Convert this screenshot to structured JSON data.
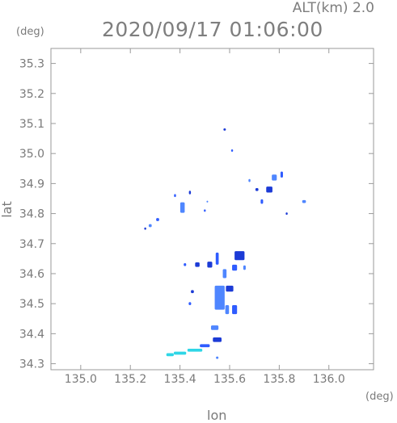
{
  "chart_data": {
    "type": "scatter",
    "title": "2020/09/17 01:06:00",
    "subtitle": "ALT(km) 2.0",
    "xlabel": "lon",
    "ylabel": "lat",
    "xunit": "(deg)",
    "yunit": "(deg)",
    "xlim": [
      134.88,
      136.18
    ],
    "ylim": [
      34.28,
      35.35
    ],
    "xticks": [
      "135.0",
      "135.2",
      "135.4",
      "135.6",
      "135.8",
      "136.0"
    ],
    "xtick_values": [
      135.0,
      135.2,
      135.4,
      135.6,
      135.8,
      136.0
    ],
    "yticks": [
      "34.3",
      "34.4",
      "34.5",
      "34.6",
      "34.7",
      "34.8",
      "34.9",
      "35.0",
      "35.1",
      "35.2",
      "35.3"
    ],
    "ytick_values": [
      34.3,
      34.4,
      34.5,
      34.6,
      34.7,
      34.8,
      34.9,
      35.0,
      35.1,
      35.2,
      35.3
    ],
    "grid": false,
    "colors": {
      "axis": "#9a9a9a",
      "echo_main": "#2f5cff",
      "echo_dark": "#1c3bd6",
      "echo_light": "#4f86ff",
      "echo_cyan": "#2fd6e6"
    },
    "cells": [
      {
        "x": 135.58,
        "y": 35.08,
        "w": 0.01,
        "h": 0.008
      },
      {
        "x": 135.61,
        "y": 35.01,
        "w": 0.008,
        "h": 0.008
      },
      {
        "x": 135.78,
        "y": 34.92,
        "w": 0.02,
        "h": 0.02
      },
      {
        "x": 135.76,
        "y": 34.88,
        "w": 0.025,
        "h": 0.02
      },
      {
        "x": 135.81,
        "y": 34.93,
        "w": 0.01,
        "h": 0.02
      },
      {
        "x": 135.68,
        "y": 34.91,
        "w": 0.008,
        "h": 0.01
      },
      {
        "x": 135.71,
        "y": 34.88,
        "w": 0.012,
        "h": 0.01
      },
      {
        "x": 135.73,
        "y": 34.84,
        "w": 0.01,
        "h": 0.015
      },
      {
        "x": 135.9,
        "y": 34.84,
        "w": 0.015,
        "h": 0.01
      },
      {
        "x": 135.83,
        "y": 34.8,
        "w": 0.008,
        "h": 0.008
      },
      {
        "x": 135.38,
        "y": 34.86,
        "w": 0.008,
        "h": 0.01
      },
      {
        "x": 135.41,
        "y": 34.82,
        "w": 0.018,
        "h": 0.035
      },
      {
        "x": 135.44,
        "y": 34.87,
        "w": 0.008,
        "h": 0.012
      },
      {
        "x": 135.31,
        "y": 34.78,
        "w": 0.012,
        "h": 0.01
      },
      {
        "x": 135.28,
        "y": 34.76,
        "w": 0.012,
        "h": 0.01
      },
      {
        "x": 135.26,
        "y": 34.75,
        "w": 0.008,
        "h": 0.008
      },
      {
        "x": 135.5,
        "y": 34.81,
        "w": 0.008,
        "h": 0.008
      },
      {
        "x": 135.51,
        "y": 34.84,
        "w": 0.006,
        "h": 0.006
      },
      {
        "x": 135.64,
        "y": 34.66,
        "w": 0.04,
        "h": 0.03
      },
      {
        "x": 135.62,
        "y": 34.62,
        "w": 0.02,
        "h": 0.02
      },
      {
        "x": 135.66,
        "y": 34.62,
        "w": 0.01,
        "h": 0.015
      },
      {
        "x": 135.52,
        "y": 34.63,
        "w": 0.02,
        "h": 0.02
      },
      {
        "x": 135.55,
        "y": 34.65,
        "w": 0.012,
        "h": 0.04
      },
      {
        "x": 135.58,
        "y": 34.6,
        "w": 0.015,
        "h": 0.03
      },
      {
        "x": 135.47,
        "y": 34.63,
        "w": 0.018,
        "h": 0.015
      },
      {
        "x": 135.42,
        "y": 34.63,
        "w": 0.01,
        "h": 0.01
      },
      {
        "x": 135.56,
        "y": 34.52,
        "w": 0.04,
        "h": 0.08
      },
      {
        "x": 135.6,
        "y": 34.55,
        "w": 0.03,
        "h": 0.02
      },
      {
        "x": 135.62,
        "y": 34.48,
        "w": 0.02,
        "h": 0.03
      },
      {
        "x": 135.59,
        "y": 34.48,
        "w": 0.015,
        "h": 0.03
      },
      {
        "x": 135.45,
        "y": 34.54,
        "w": 0.012,
        "h": 0.01
      },
      {
        "x": 135.44,
        "y": 34.5,
        "w": 0.01,
        "h": 0.01
      },
      {
        "x": 135.54,
        "y": 34.42,
        "w": 0.03,
        "h": 0.015
      },
      {
        "x": 135.55,
        "y": 34.38,
        "w": 0.035,
        "h": 0.015
      },
      {
        "x": 135.5,
        "y": 34.36,
        "w": 0.04,
        "h": 0.01
      },
      {
        "x": 135.46,
        "y": 34.345,
        "w": 0.06,
        "h": 0.01
      },
      {
        "x": 135.4,
        "y": 34.335,
        "w": 0.05,
        "h": 0.01
      },
      {
        "x": 135.36,
        "y": 34.33,
        "w": 0.03,
        "h": 0.01
      },
      {
        "x": 135.55,
        "y": 34.32,
        "w": 0.01,
        "h": 0.008
      }
    ]
  }
}
